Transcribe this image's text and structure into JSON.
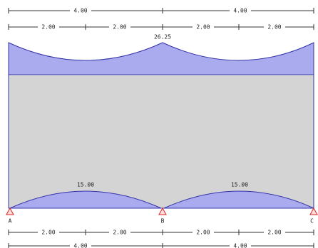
{
  "dimensions": {
    "spans": [
      "4.00",
      "4.00"
    ],
    "segments": [
      "2.00",
      "2.00",
      "2.00",
      "2.00"
    ]
  },
  "moments": {
    "support": "26.25",
    "spans": [
      "15.00",
      "15.00"
    ]
  },
  "supports": [
    "A",
    "B",
    "C"
  ]
}
